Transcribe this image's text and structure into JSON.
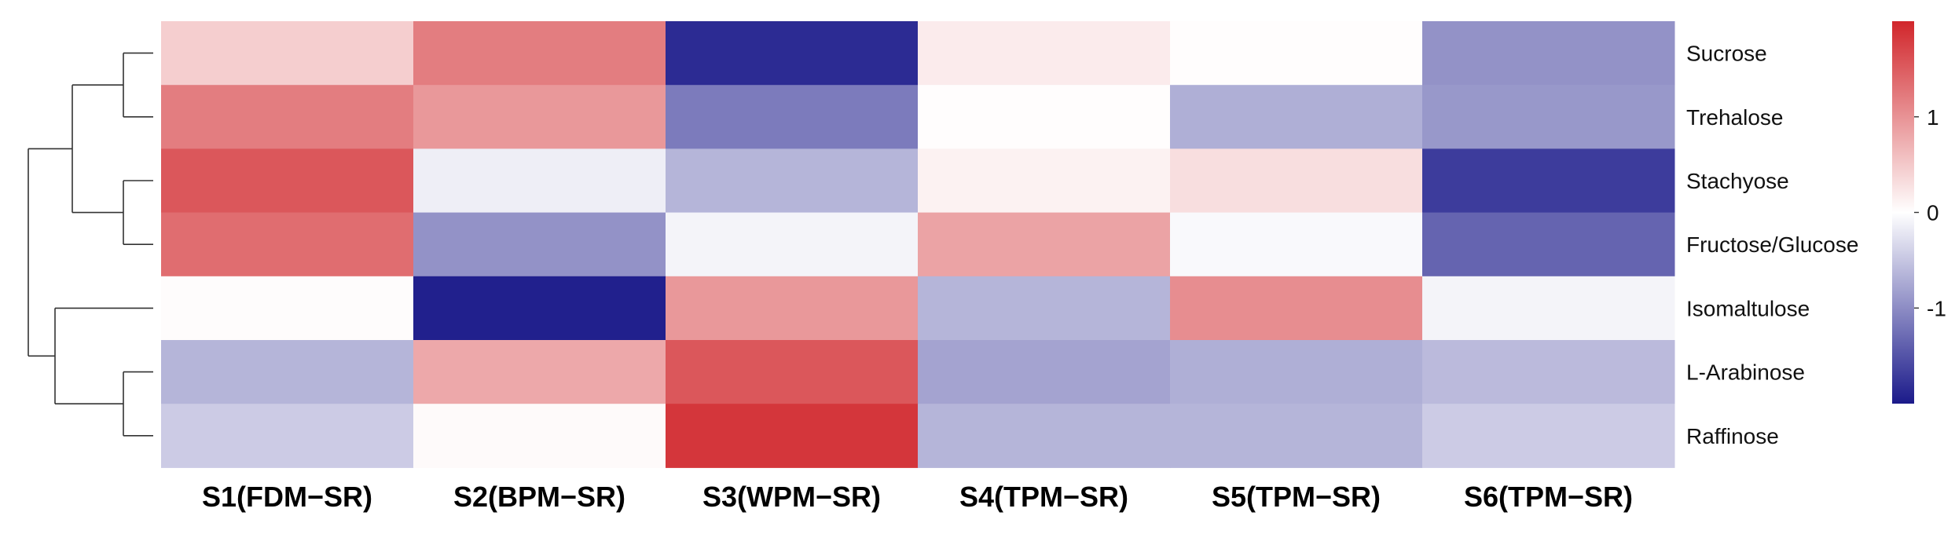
{
  "chart_data": {
    "type": "heatmap",
    "title": "",
    "xlabel": "",
    "ylabel": "",
    "columns": [
      "S1(FDM−SR)",
      "S2(BPM−SR)",
      "S3(WPM−SR)",
      "S4(TPM−SR)",
      "S5(TPM−SR)",
      "S6(TPM−SR)"
    ],
    "rows": [
      "Sucrose",
      "Trehalose",
      "Stachyose",
      "Fructose/Glucose",
      "Isomaltulose",
      "L-Arabinose",
      "Raffinose"
    ],
    "values": [
      [
        0.45,
        1.2,
        -1.85,
        0.18,
        0.02,
        -0.95
      ],
      [
        1.2,
        0.95,
        -1.15,
        0.02,
        -0.7,
        -0.9
      ],
      [
        1.55,
        -0.15,
        -0.65,
        0.12,
        0.3,
        -1.7
      ],
      [
        1.35,
        -0.95,
        -0.1,
        0.85,
        -0.05,
        -1.35
      ],
      [
        0.03,
        -1.95,
        0.95,
        -0.65,
        1.05,
        -0.1
      ],
      [
        -0.65,
        0.8,
        1.55,
        -0.8,
        -0.7,
        -0.6
      ],
      [
        -0.45,
        0.05,
        1.85,
        -0.65,
        -0.65,
        -0.45
      ]
    ],
    "color_scale": {
      "min": -2,
      "max": 2,
      "low_color": "#1b1a8a",
      "mid_color": "#ffffff",
      "high_color": "#d1262b",
      "ticks": [
        1,
        0,
        -1
      ],
      "tick_labels": [
        "1",
        "0",
        "-1"
      ]
    },
    "row_dendrogram": {
      "position": "left",
      "clusters": [
        [
          0,
          1
        ],
        [
          2,
          3
        ],
        [
          5,
          6
        ],
        [
          [
            0,
            1
          ],
          [
            2,
            3
          ]
        ],
        [
          4,
          [
            5,
            6
          ]
        ],
        [
          [
            [
              0,
              1
            ],
            [
              2,
              3
            ]
          ],
          [
            4,
            [
              5,
              6
            ]
          ]
        ]
      ]
    },
    "legend_position": "right",
    "grid": false
  }
}
